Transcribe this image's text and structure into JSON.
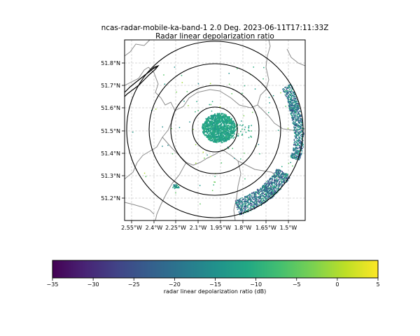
{
  "figure": {
    "title_line1": "ncas-radar-mobile-ka-band-1 2.0 Deg. 2023-06-11T17:11:33Z",
    "title_line2": "Radar linear depolarization ratio"
  },
  "map": {
    "lat_ticks": [
      "51.2°N",
      "51.3°N",
      "51.4°N",
      "51.5°N",
      "51.6°N",
      "51.7°N",
      "51.8°N"
    ],
    "lon_ticks": [
      "2.55°W",
      "2.4°W",
      "2.25°W",
      "2.1°W",
      "1.95°W",
      "1.8°W",
      "1.65°W",
      "1.5°W"
    ],
    "gridlines": true,
    "range_rings": 4,
    "colormap": "viridis"
  },
  "colorbar": {
    "label": "radar linear depolarization ratio (dB)",
    "ticks": [
      "−35",
      "−30",
      "−25",
      "−20",
      "−15",
      "−10",
      "−5",
      "0",
      "5"
    ],
    "min": -35,
    "max": 5
  },
  "colors": {
    "viridis_stops": [
      "#440154",
      "#482475",
      "#414487",
      "#355f8d",
      "#2a788e",
      "#21918c",
      "#22a884",
      "#44bf70",
      "#7ad151",
      "#bddf26",
      "#fde725"
    ],
    "coastline": "#000000",
    "boundary": "#888888",
    "grid": "#cccccc"
  }
}
